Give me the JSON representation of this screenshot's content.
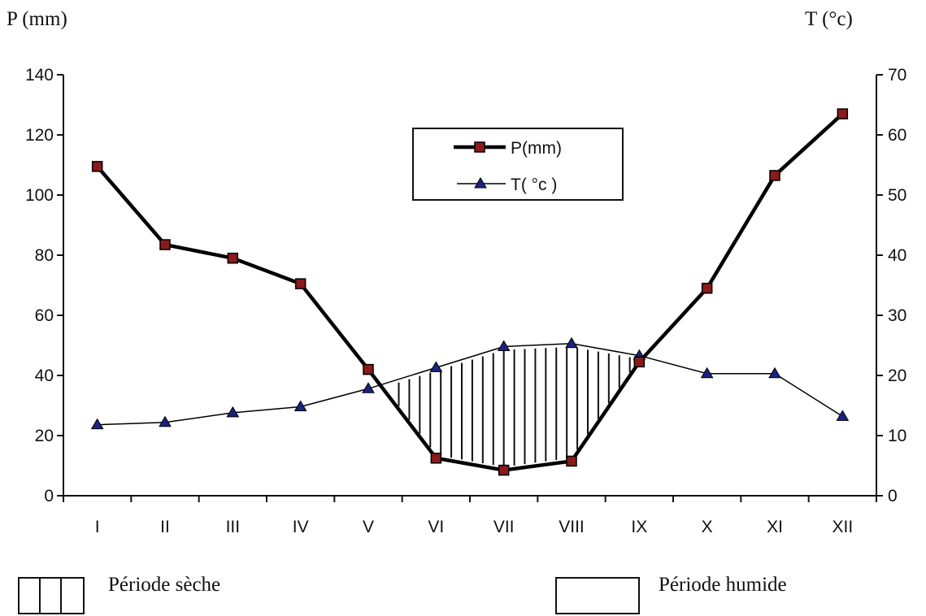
{
  "chart_data": {
    "type": "line",
    "categories": [
      "I",
      "II",
      "III",
      "IV",
      "V",
      "VI",
      "VII",
      "VIII",
      "IX",
      "X",
      "XI",
      "XII"
    ],
    "series": [
      {
        "name": "P(mm)",
        "axis": "left",
        "values": [
          109.5,
          83.5,
          79,
          70.5,
          42,
          12.5,
          8.5,
          11.5,
          44.5,
          69,
          106.5,
          127
        ],
        "color": "#000000",
        "marker": "square",
        "marker_color": "#8b1a1a"
      },
      {
        "name": "T( °c )",
        "axis": "right",
        "values": [
          11.8,
          12.2,
          13.8,
          14.8,
          17.8,
          21.3,
          24.8,
          25.3,
          23.3,
          20.3,
          20.3,
          13.2
        ],
        "color": "#000000",
        "marker": "triangle",
        "marker_color": "#1a237e"
      }
    ],
    "ylabel_left": "P (mm)",
    "ylabel_right": "T (°c)",
    "ylim_left": [
      0,
      140
    ],
    "ylim_right": [
      0,
      70
    ],
    "yticks_left": [
      "0",
      "20",
      "40",
      "60",
      "80",
      "100",
      "120",
      "140"
    ],
    "yticks_right": [
      "0",
      "10",
      "20",
      "30",
      "40",
      "50",
      "60",
      "70"
    ],
    "grid": false,
    "legend_position": "top-center",
    "dry_period_hatching": "vertical lines between the T curve and the P curve where T exceeds P/2"
  },
  "legend_bottom": {
    "dry": "Période sèche",
    "wet": "Période humide"
  }
}
